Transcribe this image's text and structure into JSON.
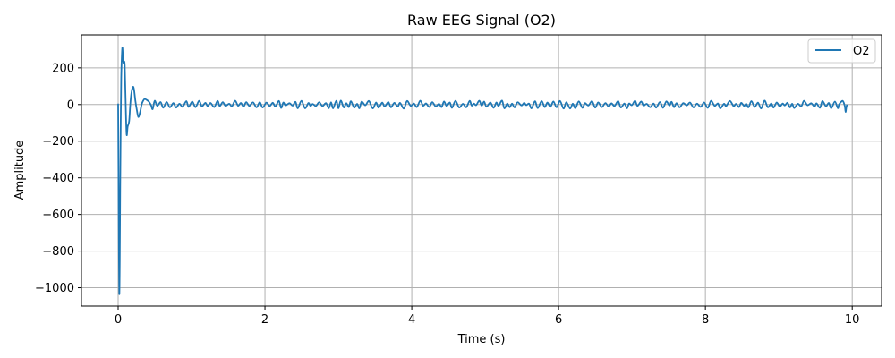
{
  "chart_data": {
    "type": "line",
    "title": "Raw EEG Signal (O2)",
    "xlabel": "Time (s)",
    "ylabel": "Amplitude",
    "xlim": [
      -0.5,
      10.4
    ],
    "ylim": [
      -1100,
      380
    ],
    "xticks": [
      0,
      2,
      4,
      6,
      8,
      10
    ],
    "yticks": [
      -1000,
      -800,
      -600,
      -400,
      -200,
      0,
      200
    ],
    "xtick_labels": [
      "0",
      "2",
      "4",
      "6",
      "8",
      "10"
    ],
    "ytick_labels": [
      "−1000",
      "−800",
      "−600",
      "−400",
      "−200",
      "0",
      "200"
    ],
    "grid": true,
    "legend_position": "top-right",
    "series": [
      {
        "name": "O2",
        "color": "#1f77b4",
        "initial_points": [
          [
            0.0,
            5
          ],
          [
            0.005,
            -400
          ],
          [
            0.01,
            -800
          ],
          [
            0.016,
            -1035
          ],
          [
            0.022,
            -850
          ],
          [
            0.028,
            -450
          ],
          [
            0.035,
            -100
          ],
          [
            0.042,
            150
          ],
          [
            0.05,
            260
          ],
          [
            0.058,
            312
          ],
          [
            0.066,
            250
          ],
          [
            0.074,
            225
          ],
          [
            0.082,
            235
          ],
          [
            0.09,
            210
          ],
          [
            0.1,
            50
          ],
          [
            0.115,
            -160
          ],
          [
            0.13,
            -120
          ],
          [
            0.15,
            -90
          ],
          [
            0.165,
            0
          ],
          [
            0.18,
            60
          ],
          [
            0.2,
            95
          ],
          [
            0.215,
            85
          ],
          [
            0.235,
            20
          ],
          [
            0.255,
            -30
          ],
          [
            0.275,
            -68
          ],
          [
            0.3,
            -40
          ],
          [
            0.32,
            0
          ],
          [
            0.34,
            20
          ],
          [
            0.36,
            30
          ],
          [
            0.39,
            25
          ],
          [
            0.42,
            15
          ],
          [
            0.45,
            -5
          ],
          [
            0.47,
            -25
          ]
        ],
        "end_points": [
          [
            9.82,
            0
          ],
          [
            9.85,
            15
          ],
          [
            9.87,
            20
          ],
          [
            9.885,
            10
          ],
          [
            9.9,
            -10
          ],
          [
            9.91,
            -40
          ],
          [
            9.92,
            -15
          ],
          [
            9.93,
            0
          ]
        ],
        "noise_start": 0.47,
        "noise_end": 9.82,
        "noise_amplitude_max": 22,
        "noise_cycle_seconds": 0.08
      }
    ]
  }
}
